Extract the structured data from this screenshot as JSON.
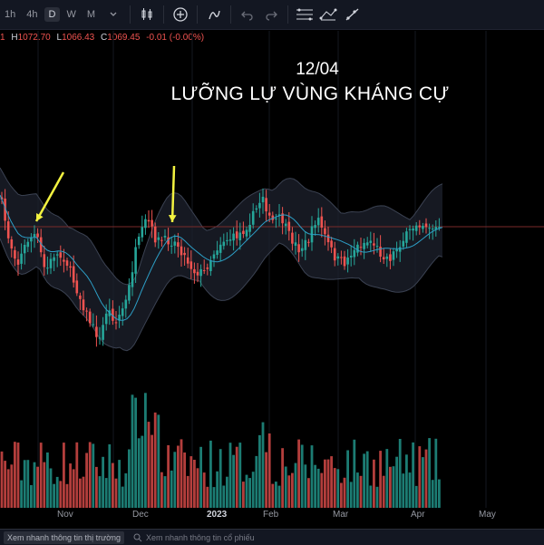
{
  "toolbar": {
    "timeframes": [
      "1h",
      "4h",
      "D",
      "W",
      "M"
    ],
    "active_timeframe": "D",
    "icons": [
      "candlestick-icon",
      "plus-circle-icon",
      "indicator-icon",
      "undo-icon",
      "redo-icon",
      "horizontal-lines-icon",
      "path-icon",
      "ray-icon"
    ]
  },
  "ohlc": {
    "o_val": "1",
    "h_label": "H",
    "h_val": "1072.70",
    "l_label": "L",
    "l_val": "1066.43",
    "c_label": "C",
    "c_val": "1069.45",
    "change": "-0.01 (-0.00%)"
  },
  "annotation": {
    "date": "12/04",
    "headline": "LƯỠNG LỰ VÙNG KHÁNG CỰ"
  },
  "xaxis": {
    "labels": [
      "Nov",
      "Dec",
      "2023",
      "Feb",
      "Mar",
      "Apr",
      "May"
    ]
  },
  "bottom": {
    "tab_label": "Xem nhanh thông tin thị trường",
    "search_label": "Xem nhanh thông tin cổ phiếu"
  },
  "colors": {
    "up": "#26a69a",
    "down": "#ef5350",
    "basis": "#2d9fc7",
    "band_fill": "#1e222d",
    "band_line": "#3b4252",
    "arrow": "#f2f240",
    "resistance": "#7a2a2a"
  },
  "chart_data": {
    "type": "candlestick",
    "x_start": "2022-10-17",
    "x_end": "2023-04-12",
    "x_ticks": [
      "Nov",
      "Dec",
      "2023",
      "Feb",
      "Mar",
      "Apr",
      "May"
    ],
    "last_candle": {
      "high": 1072.7,
      "low": 1066.43,
      "close": 1069.45,
      "change": -0.01,
      "change_pct": -0.0
    },
    "resistance_level": 1070,
    "indicators": [
      "Bollinger Bands",
      "Volume"
    ],
    "annotations": [
      {
        "type": "arrow",
        "position": "first peak, late October"
      },
      {
        "type": "arrow",
        "position": "second peak, mid December"
      }
    ]
  }
}
